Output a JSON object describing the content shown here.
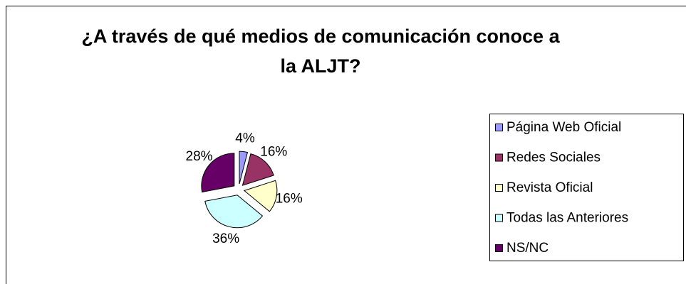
{
  "chart_data": {
    "type": "pie",
    "title": "¿A través de qué medios de comunicación conoce a la ALJT?",
    "categories": [
      "Página Web Oficial",
      "Redes Sociales",
      "Revista Oficial",
      "Todas las Anteriores",
      "NS/NC"
    ],
    "values": [
      4,
      16,
      16,
      36,
      28
    ],
    "value_labels": [
      "4%",
      "16%",
      "16%",
      "36%",
      "28%"
    ],
    "colors": [
      "#9999ff",
      "#993366",
      "#ffffcc",
      "#ccffff",
      "#660066"
    ],
    "legend": "right"
  }
}
